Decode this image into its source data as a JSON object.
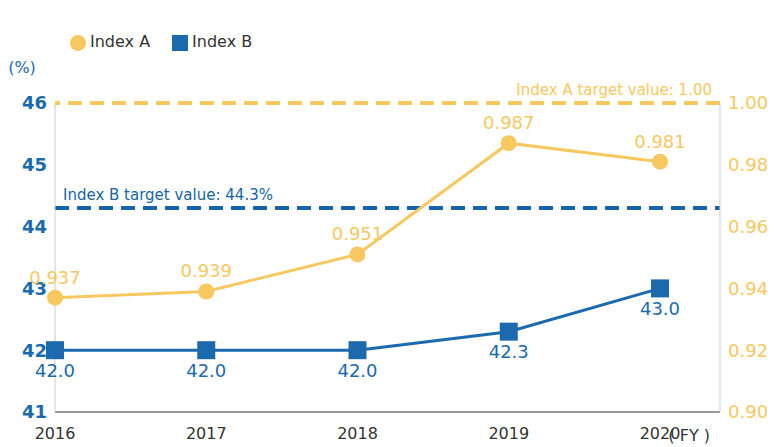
{
  "chart_data": {
    "type": "line",
    "ylabel": "(%)",
    "xlabel": "( FY )",
    "categories": [
      "2016",
      "2017",
      "2018",
      "2019",
      "2020"
    ],
    "series": [
      {
        "name": "Index A",
        "color": "#F6C85F",
        "axis": "y2",
        "marker": "circle",
        "values": [
          0.937,
          0.939,
          0.951,
          0.987,
          0.981
        ]
      },
      {
        "name": "Index B",
        "color": "#1B6AAE",
        "marker": "square",
        "values": [
          42.0,
          42.0,
          42.0,
          42.3,
          43.0
        ],
        "value_labels": [
          "42.0",
          "42.0",
          "42.0",
          "42.3",
          "43.0"
        ]
      }
    ],
    "ylim": [
      41,
      46
    ],
    "yticks": [
      41,
      42,
      43,
      44,
      45,
      46
    ],
    "y2lim": [
      0.9,
      1.0
    ],
    "y2ticks": [
      {
        "value": 0.9,
        "label": "0.90"
      },
      0.92,
      0.94,
      0.96,
      0.98,
      {
        "value": 1.0,
        "label": "1.00"
      }
    ],
    "target_lines": [
      {
        "axis": "y2",
        "value": 1.0,
        "label": "Index A target value: 1.00",
        "color": "#F6C85F",
        "line_style": "dashed"
      },
      {
        "axis": "y",
        "value": 44.3,
        "label": "Index B target value: 44.3%",
        "color": "#1565A8",
        "line_style": "dashed"
      }
    ],
    "data_labels": true,
    "grid": false,
    "legend": "top-left"
  }
}
